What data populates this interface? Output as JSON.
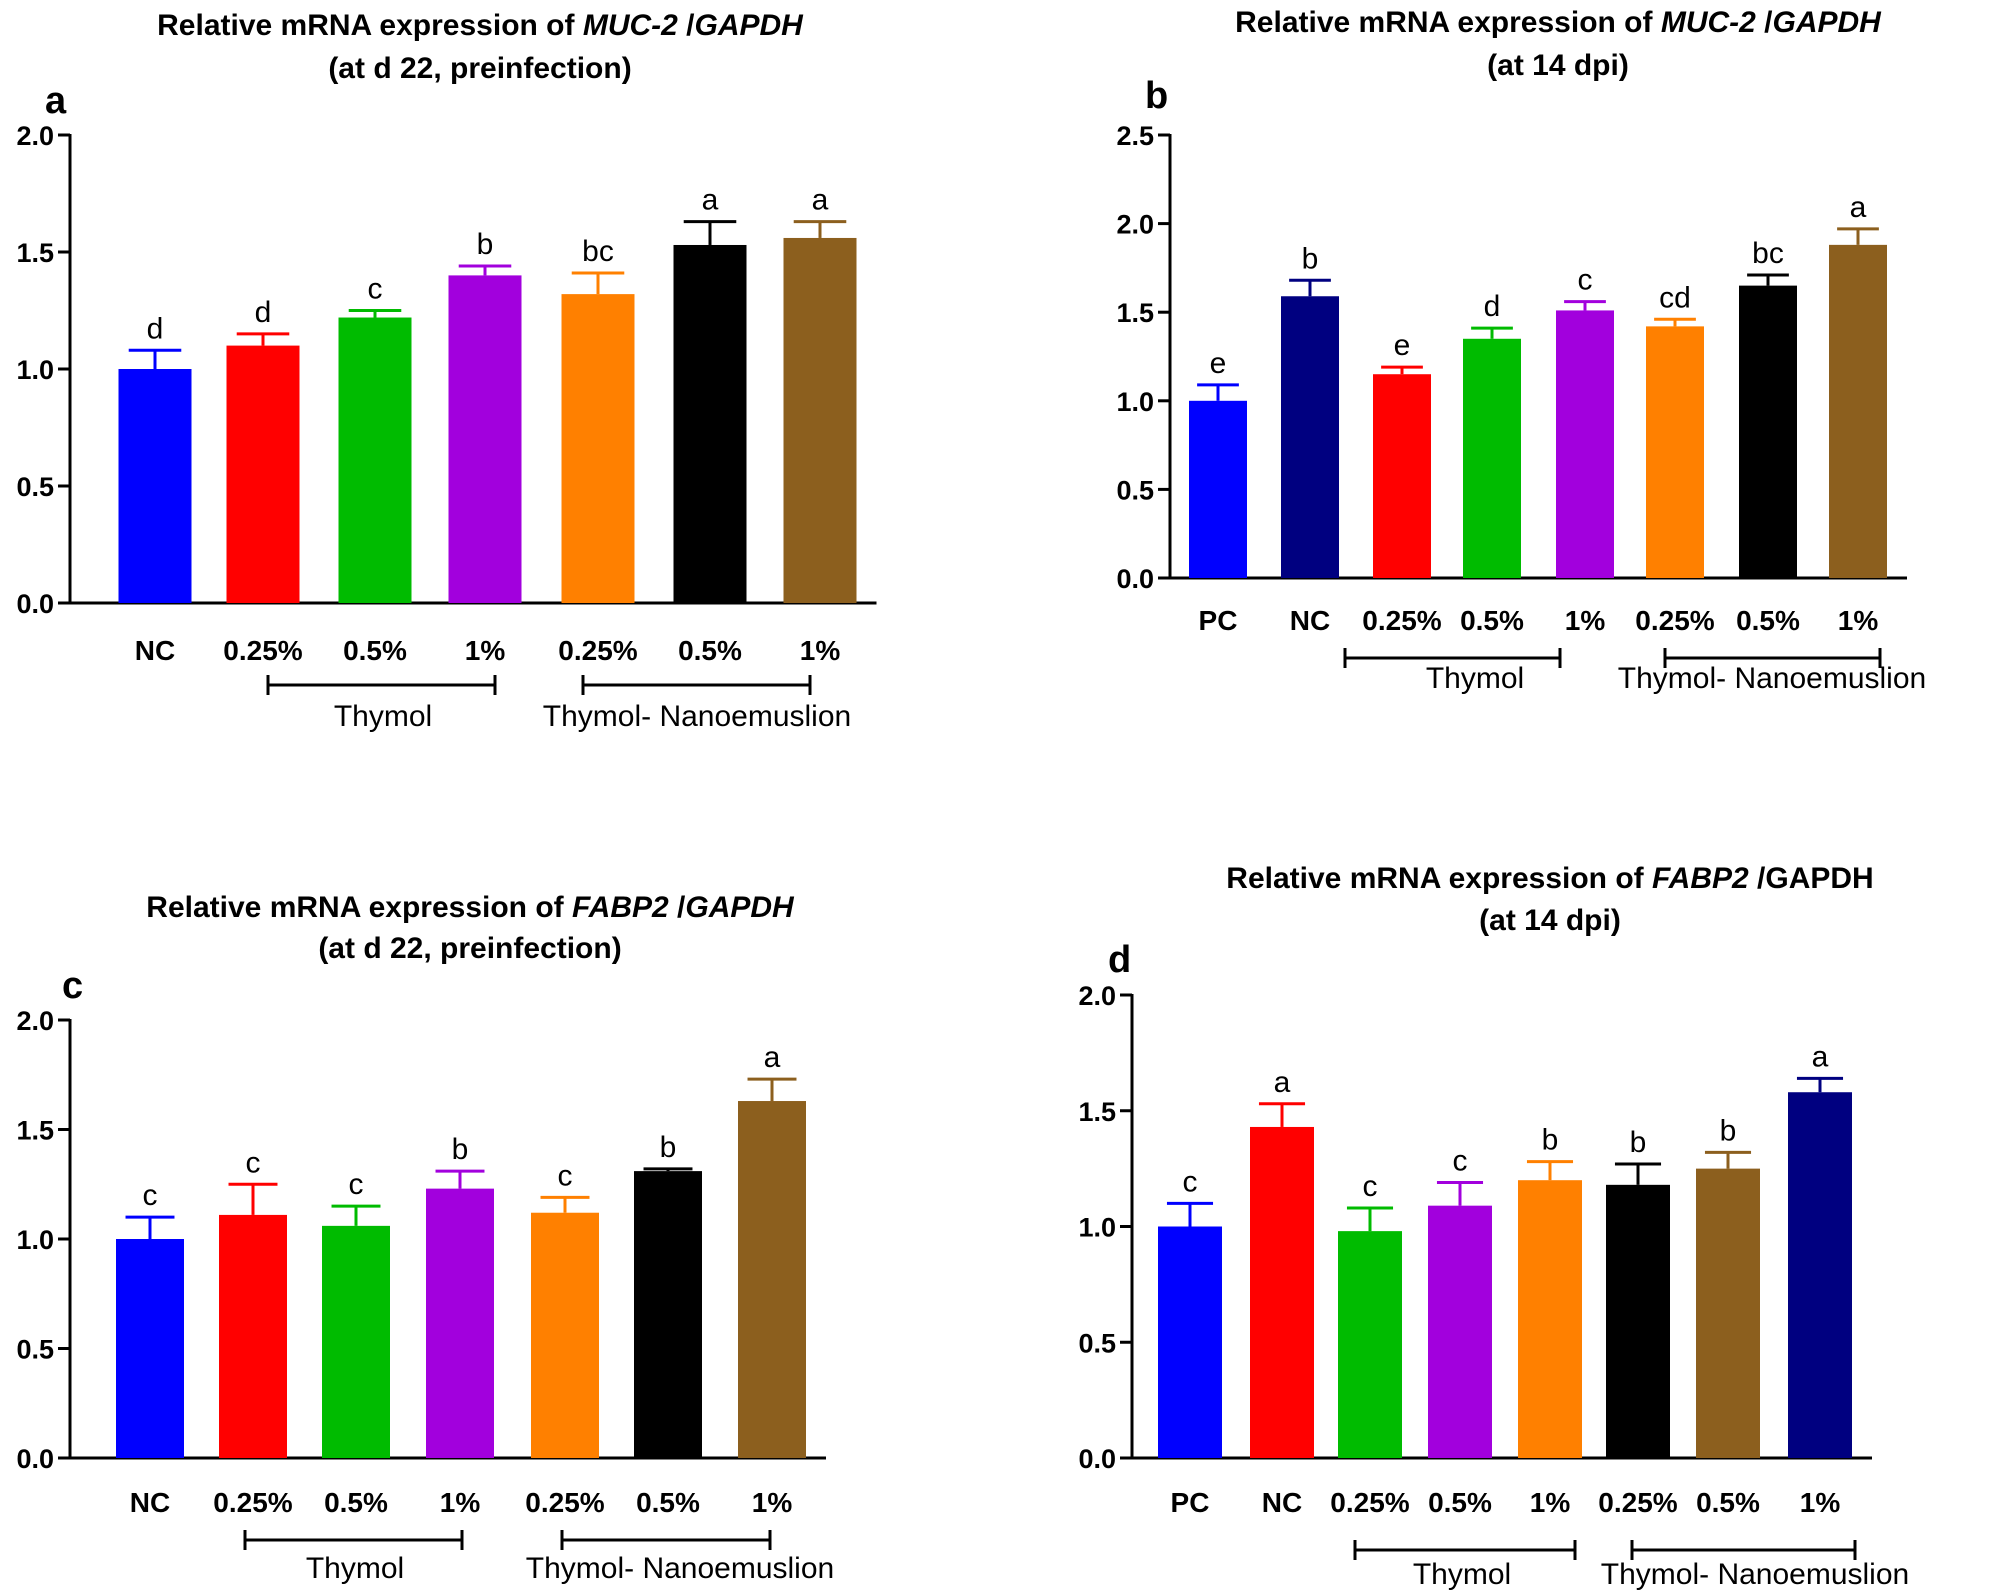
{
  "chart_data": [
    {
      "type": "bar",
      "panel_letter": "a",
      "title_line1_prefix": "Relative mRNA expression of ",
      "title_line1_gene": "MUC-2",
      "title_line1_sep": " /",
      "title_line1_ref": "GAPDH",
      "title_line2": "(at d 22, preinfection)",
      "categories": [
        "NC",
        "0.25%",
        "0.5%",
        "1%",
        "0.25%",
        "0.5%",
        "1%"
      ],
      "values": [
        1.0,
        1.1,
        1.22,
        1.4,
        1.32,
        1.53,
        1.56
      ],
      "errors": [
        0.08,
        0.05,
        0.03,
        0.04,
        0.09,
        0.1,
        0.07
      ],
      "letters": [
        "d",
        "d",
        "c",
        "b",
        "bc",
        "a",
        "a"
      ],
      "colors": [
        "#0000FF",
        "#FF0000",
        "#00BB00",
        "#A200DD",
        "#FF8000",
        "#000000",
        "#8C5F1E"
      ],
      "ylim": [
        0,
        2.0
      ],
      "yticks": [
        "0.0",
        "0.5",
        "1.0",
        "1.5",
        "2.0"
      ],
      "ytick_values": [
        0,
        0.5,
        1.0,
        1.5,
        2.0
      ],
      "groups": [
        {
          "label": "Thymol",
          "from": 1,
          "to": 3
        },
        {
          "label": "Thymol- Nanoemuslion",
          "from": 4,
          "to": 6
        }
      ],
      "xlabel": "",
      "ylabel": ""
    },
    {
      "type": "bar",
      "panel_letter": "b",
      "title_line1_prefix": "Relative mRNA expression of ",
      "title_line1_gene": "MUC-2",
      "title_line1_sep": " /",
      "title_line1_ref": "GAPDH",
      "title_line2": "(at 14 dpi)",
      "categories": [
        "PC",
        "NC",
        "0.25%",
        "0.5%",
        "1%",
        "0.25%",
        "0.5%",
        "1%"
      ],
      "values": [
        1.0,
        1.59,
        1.15,
        1.35,
        1.51,
        1.42,
        1.65,
        1.88
      ],
      "errors": [
        0.09,
        0.09,
        0.04,
        0.06,
        0.05,
        0.04,
        0.06,
        0.09
      ],
      "letters": [
        "e",
        "b",
        "e",
        "d",
        "c",
        "cd",
        "bc",
        "a"
      ],
      "colors": [
        "#0000FF",
        "#000080",
        "#FF0000",
        "#00BB00",
        "#A200DD",
        "#FF8000",
        "#000000",
        "#8C5F1E"
      ],
      "ylim": [
        0,
        2.5
      ],
      "yticks": [
        "0.0",
        "0.5",
        "1.0",
        "1.5",
        "2.0",
        "2.5"
      ],
      "ytick_values": [
        0,
        0.5,
        1.0,
        1.5,
        2.0,
        2.5
      ],
      "groups": [
        {
          "label": "Thymol",
          "from": 1,
          "to": 3
        },
        {
          "label": "Thymol- Nanoemuslion",
          "from": 5,
          "to": 7
        }
      ],
      "xlabel": "",
      "ylabel": ""
    },
    {
      "type": "bar",
      "panel_letter": "c",
      "title_line1_prefix": "Relative mRNA expression of ",
      "title_line1_gene": "FABP2",
      "title_line1_sep": " /",
      "title_line1_ref": "GAPDH",
      "title_line2": "(at d 22, preinfection)",
      "categories": [
        "NC",
        "0.25%",
        "0.5%",
        "1%",
        "0.25%",
        "0.5%",
        "1%"
      ],
      "values": [
        1.0,
        1.11,
        1.06,
        1.23,
        1.12,
        1.31,
        1.63
      ],
      "errors": [
        0.1,
        0.14,
        0.09,
        0.08,
        0.07,
        0.01,
        0.1
      ],
      "letters": [
        "c",
        "c",
        "c",
        "b",
        "c",
        "b",
        "a"
      ],
      "colors": [
        "#0000FF",
        "#FF0000",
        "#00BB00",
        "#A200DD",
        "#FF8000",
        "#000000",
        "#8C5F1E"
      ],
      "ylim": [
        0,
        2.0
      ],
      "yticks": [
        "0.0",
        "0.5",
        "1.0",
        "1.5",
        "2.0"
      ],
      "ytick_values": [
        0,
        0.5,
        1.0,
        1.5,
        2.0
      ],
      "groups": [
        {
          "label": "Thymol",
          "from": 1,
          "to": 3
        },
        {
          "label": "Thymol- Nanoemuslion",
          "from": 4,
          "to": 6
        }
      ],
      "xlabel": "",
      "ylabel": ""
    },
    {
      "type": "bar",
      "panel_letter": "d",
      "title_line1_prefix": "Relative mRNA expression of ",
      "title_line1_gene": "FABP2",
      "title_line1_sep": " /",
      "title_line1_ref": "GAPDH",
      "title_line2": "(at 14 dpi)",
      "categories": [
        "PC",
        "NC",
        "0.25%",
        "0.5%",
        "1%",
        "0.25%",
        "0.5%",
        "1%"
      ],
      "values": [
        1.0,
        1.43,
        0.98,
        1.09,
        1.2,
        1.18,
        1.25,
        1.58
      ],
      "errors": [
        0.1,
        0.1,
        0.1,
        0.1,
        0.08,
        0.09,
        0.07,
        0.06
      ],
      "letters": [
        "c",
        "a",
        "c",
        "c",
        "b",
        "b",
        "b",
        "a"
      ],
      "colors": [
        "#0000FF",
        "#FF0000",
        "#00BB00",
        "#A200DD",
        "#FF8000",
        "#000000",
        "#8C5F1E",
        "#000080"
      ],
      "ylim": [
        0,
        2.0
      ],
      "yticks": [
        "0.0",
        "0.5",
        "1.0",
        "1.5",
        "2.0"
      ],
      "ytick_values": [
        0,
        0.5,
        1.0,
        1.5,
        2.0
      ],
      "groups": [
        {
          "label": "Thymol",
          "from": 2,
          "to": 4
        },
        {
          "label": "Thymol- Nanoemuslion",
          "from": 5,
          "to": 7
        }
      ],
      "xlabel": "",
      "ylabel": ""
    }
  ]
}
